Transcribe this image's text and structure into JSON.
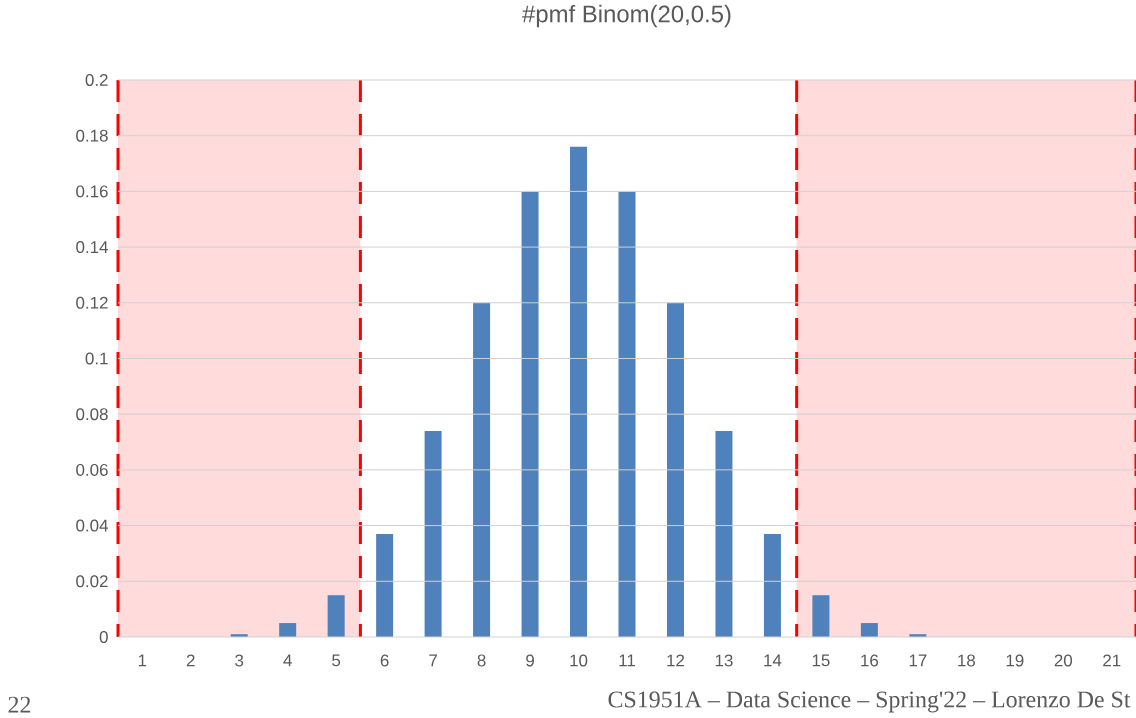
{
  "chart_data": {
    "type": "bar",
    "title": "#pmf Binom(20,0.5)",
    "categories": [
      "1",
      "2",
      "3",
      "4",
      "5",
      "6",
      "7",
      "8",
      "9",
      "10",
      "11",
      "12",
      "13",
      "14",
      "15",
      "16",
      "17",
      "18",
      "19",
      "20",
      "21"
    ],
    "values": [
      0,
      0,
      0.001,
      0.005,
      0.015,
      0.037,
      0.074,
      0.12,
      0.16,
      0.176,
      0.16,
      0.12,
      0.074,
      0.037,
      0.015,
      0.005,
      0.001,
      0,
      0,
      0,
      0
    ],
    "color": "#4f81bd",
    "ylim": [
      0,
      0.2
    ],
    "yticks": [
      0,
      0.02,
      0.04,
      0.06,
      0.08,
      0.1,
      0.12,
      0.14,
      0.16,
      0.18,
      0.2
    ],
    "grid": "y",
    "bands": [
      {
        "axis": "x",
        "from": "1",
        "to": "5",
        "color": "#ffdbdb"
      },
      {
        "axis": "x",
        "from": "15",
        "to": "21",
        "color": "#ffdbdb"
      }
    ],
    "annotations": [
      "22",
      "CS1951A – Data Science – Spring'22 – Lorenzo De St"
    ]
  }
}
